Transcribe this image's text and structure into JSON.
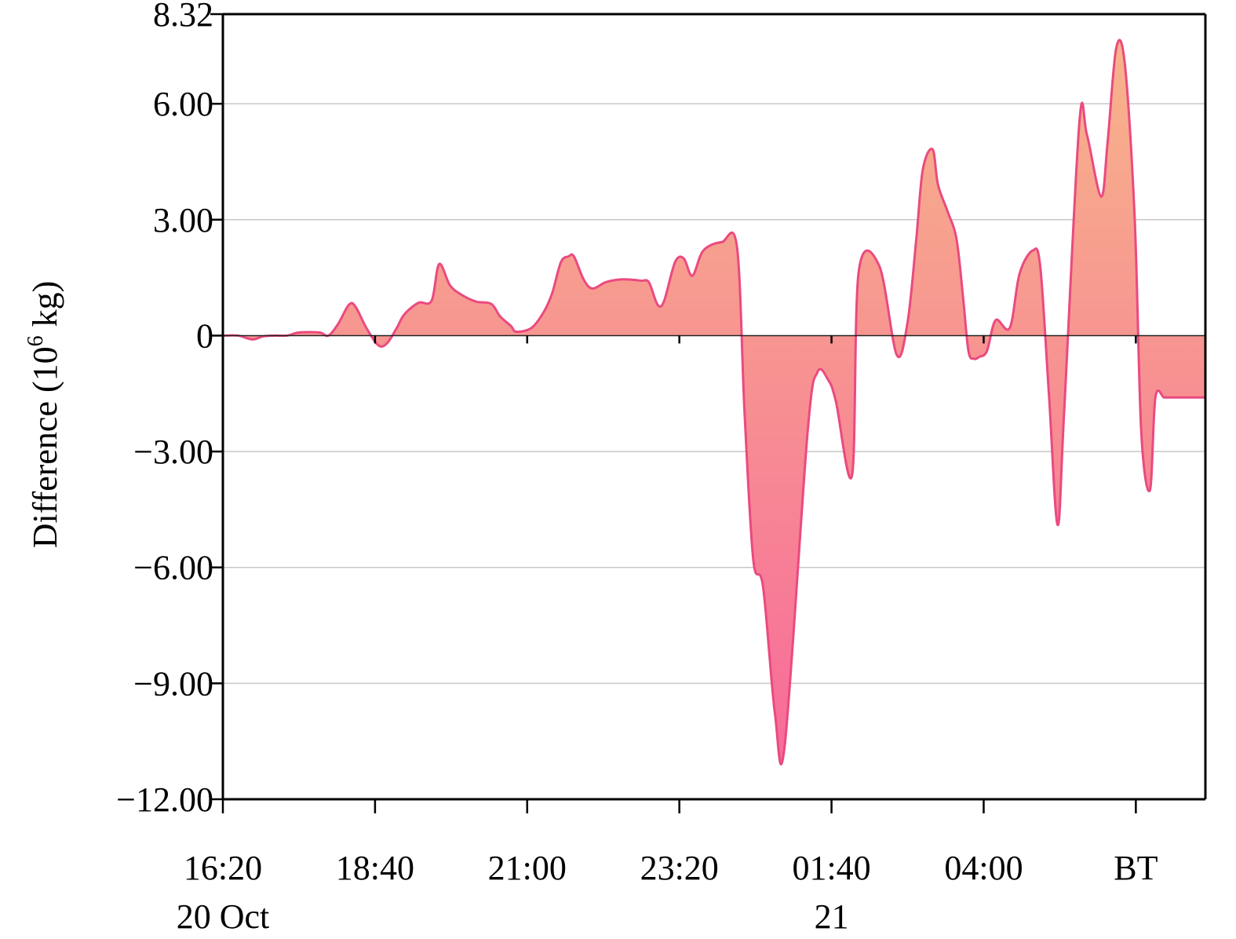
{
  "chart_data": {
    "type": "area",
    "ylabel_main": "Difference (10",
    "ylabel_sup": "6",
    "ylabel_unit": " kg)",
    "ylim": [
      -12.0,
      8.32
    ],
    "y_ticks": [
      {
        "value": 8.32,
        "label": "8.32"
      },
      {
        "value": 6.0,
        "label": "6.00"
      },
      {
        "value": 3.0,
        "label": "3.00"
      },
      {
        "value": 0,
        "label": "0"
      },
      {
        "value": -3.0,
        "label": "−3.00"
      },
      {
        "value": -6.0,
        "label": "−6.00"
      },
      {
        "value": -9.0,
        "label": "−9.00"
      },
      {
        "value": -12.0,
        "label": "−12.00"
      }
    ],
    "xlim": [
      0,
      904
    ],
    "x_unit": "minutes after 16:20 on 20 Oct",
    "x_ticks": [
      {
        "value": 0,
        "label": "16:20",
        "sublabel": "20 Oct"
      },
      {
        "value": 140,
        "label": "18:40",
        "sublabel": ""
      },
      {
        "value": 280,
        "label": "21:00",
        "sublabel": ""
      },
      {
        "value": 420,
        "label": "23:20",
        "sublabel": ""
      },
      {
        "value": 560,
        "label": "01:40",
        "sublabel": "21"
      },
      {
        "value": 700,
        "label": "04:00",
        "sublabel": ""
      },
      {
        "value": 840,
        "label": "BT",
        "sublabel": ""
      }
    ],
    "grid": "horizontal",
    "colors": {
      "fill_top": "#f7b48a",
      "fill_bottom": "#f76a9a",
      "line": "#ea4a7f"
    },
    "x": [
      0,
      14,
      27,
      37,
      48,
      59,
      70,
      89,
      97,
      106,
      116,
      122,
      132,
      143,
      151,
      160,
      167,
      180,
      192,
      199,
      209,
      220,
      233,
      247,
      255,
      265,
      270,
      284,
      295,
      303,
      311,
      318,
      323,
      332,
      340,
      352,
      364,
      375,
      385,
      392,
      400,
      406,
      416,
      424,
      432,
      442,
      459,
      473,
      480,
      488,
      497,
      508,
      517,
      538,
      547,
      557,
      564,
      579,
      585,
      604,
      620,
      630,
      638,
      644,
      653,
      658,
      667,
      675,
      681,
      686,
      691,
      696,
      703,
      711,
      724,
      733,
      745,
      752,
      760,
      768,
      774,
      788,
      795,
      808,
      814,
      822,
      830,
      839,
      845,
      853,
      858,
      866,
      872,
      882,
      893,
      904
    ],
    "values": [
      0.0,
      0.0,
      -0.1,
      -0.02,
      0.0,
      0.0,
      0.08,
      0.08,
      0.0,
      0.3,
      0.8,
      0.75,
      0.2,
      -0.25,
      -0.2,
      0.2,
      0.55,
      0.85,
      0.9,
      1.85,
      1.3,
      1.05,
      0.88,
      0.82,
      0.5,
      0.25,
      0.1,
      0.2,
      0.6,
      1.1,
      1.9,
      2.05,
      2.05,
      1.45,
      1.22,
      1.38,
      1.45,
      1.45,
      1.42,
      1.38,
      0.8,
      0.9,
      1.9,
      2.0,
      1.55,
      2.2,
      2.42,
      2.3,
      -2.0,
      -5.8,
      -6.5,
      -9.8,
      -10.6,
      -2.5,
      -0.95,
      -1.15,
      -1.7,
      -3.6,
      1.65,
      1.8,
      -0.5,
      0.35,
      2.5,
      4.3,
      4.82,
      3.9,
      3.2,
      2.5,
      1.0,
      -0.4,
      -0.6,
      -0.55,
      -0.4,
      0.4,
      0.2,
      1.6,
      2.2,
      1.8,
      -1.5,
      -4.9,
      -2.0,
      5.5,
      5.2,
      3.6,
      5.0,
      7.45,
      7.0,
      3.0,
      -2.5,
      -4.0,
      -1.6,
      -1.6,
      -1.6,
      -1.6,
      -1.6,
      -1.6
    ]
  }
}
